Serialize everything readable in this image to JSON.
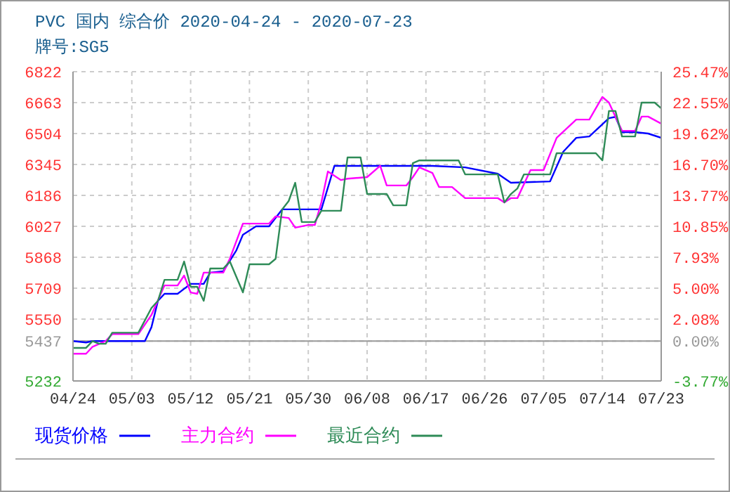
{
  "chart_data": {
    "type": "line",
    "title": "PVC 国内 综合价 2020-04-24 - 2020-07-23",
    "subtitle": "牌号:SG5",
    "xlim": [
      "2020-04-24",
      "2020-07-23"
    ],
    "xticks": [
      {
        "value": "2020-04-24",
        "label": "04/24"
      },
      {
        "value": "2020-05-03",
        "label": "05/03"
      },
      {
        "value": "2020-05-12",
        "label": "05/12"
      },
      {
        "value": "2020-05-21",
        "label": "05/21"
      },
      {
        "value": "2020-05-30",
        "label": "05/30"
      },
      {
        "value": "2020-06-08",
        "label": "06/08"
      },
      {
        "value": "2020-06-17",
        "label": "06/17"
      },
      {
        "value": "2020-06-26",
        "label": "06/26"
      },
      {
        "value": "2020-07-05",
        "label": "07/05"
      },
      {
        "value": "2020-07-14",
        "label": "07/14"
      },
      {
        "value": "2020-07-23",
        "label": "07/23"
      }
    ],
    "ylim": [
      5232,
      6822
    ],
    "yticks": [
      5232,
      5437,
      5550,
      5709,
      5868,
      6027,
      6186,
      6345,
      6504,
      6663,
      6822
    ],
    "y2lim": [
      -3.77,
      25.47
    ],
    "y2ticks": [
      {
        "value": -3.77,
        "label": "-3.77%"
      },
      {
        "value": 0,
        "label": "0.00%"
      },
      {
        "value": 2.08,
        "label": "2.08%"
      },
      {
        "value": 5.0,
        "label": "5.00%"
      },
      {
        "value": 7.93,
        "label": "7.93%"
      },
      {
        "value": 10.85,
        "label": "10.85%"
      },
      {
        "value": 13.77,
        "label": "13.77%"
      },
      {
        "value": 16.7,
        "label": "16.70%"
      },
      {
        "value": 19.62,
        "label": "19.62%"
      },
      {
        "value": 22.55,
        "label": "22.55%"
      },
      {
        "value": 25.47,
        "label": "25.47%"
      }
    ],
    "ref_lines": [
      {
        "axis": "y",
        "value": 5437,
        "label": null,
        "color": "#999999",
        "line_style": "solid"
      }
    ],
    "grid": true,
    "legend": "bottom",
    "marker": "none",
    "line_style": "solid",
    "series": [
      {
        "name": "现货价格",
        "color": "#0000ff",
        "x": [
          "2020-04-24",
          "2020-04-26",
          "2020-04-27",
          "2020-05-05",
          "2020-05-06",
          "2020-05-07",
          "2020-05-08",
          "2020-05-10",
          "2020-05-12",
          "2020-05-14",
          "2020-05-15",
          "2020-05-17",
          "2020-05-19",
          "2020-05-20",
          "2020-05-22",
          "2020-05-24",
          "2020-05-26",
          "2020-06-01",
          "2020-06-03",
          "2020-06-18",
          "2020-06-23",
          "2020-06-28",
          "2020-06-30",
          "2020-07-06",
          "2020-07-08",
          "2020-07-10",
          "2020-07-12",
          "2020-07-15",
          "2020-07-16",
          "2020-07-17",
          "2020-07-19",
          "2020-07-21",
          "2020-07-23"
        ],
        "values": [
          5437,
          5430,
          5437,
          5437,
          5508,
          5644,
          5680,
          5680,
          5731,
          5731,
          5789,
          5796,
          5904,
          5984,
          6027,
          6027,
          6114,
          6114,
          6338,
          6338,
          6330,
          6297,
          6251,
          6258,
          6410,
          6482,
          6489,
          6583,
          6590,
          6511,
          6511,
          6504,
          6482
        ]
      },
      {
        "name": "主力合约",
        "color": "#ff00ff",
        "x": [
          "2020-04-24",
          "2020-04-26",
          "2020-04-27",
          "2020-04-29",
          "2020-04-30",
          "2020-05-04",
          "2020-05-06",
          "2020-05-08",
          "2020-05-10",
          "2020-05-11",
          "2020-05-12",
          "2020-05-13",
          "2020-05-14",
          "2020-05-17",
          "2020-05-18",
          "2020-05-20",
          "2020-05-24",
          "2020-05-25",
          "2020-05-27",
          "2020-05-28",
          "2020-05-30",
          "2020-05-31",
          "2020-06-01",
          "2020-06-02",
          "2020-06-04",
          "2020-06-05",
          "2020-06-08",
          "2020-06-10",
          "2020-06-11",
          "2020-06-14",
          "2020-06-15",
          "2020-06-16",
          "2020-06-18",
          "2020-06-19",
          "2020-06-21",
          "2020-06-23",
          "2020-06-28",
          "2020-06-29",
          "2020-06-30",
          "2020-07-01",
          "2020-07-03",
          "2020-07-05",
          "2020-07-07",
          "2020-07-10",
          "2020-07-12",
          "2020-07-14",
          "2020-07-15",
          "2020-07-17",
          "2020-07-19",
          "2020-07-20",
          "2020-07-21",
          "2020-07-23"
        ],
        "values": [
          5372,
          5372,
          5408,
          5437,
          5473,
          5473,
          5571,
          5723,
          5723,
          5774,
          5687,
          5680,
          5789,
          5789,
          5861,
          6041,
          6041,
          6078,
          6070,
          6020,
          6034,
          6034,
          6150,
          6309,
          6265,
          6272,
          6280,
          6338,
          6237,
          6237,
          6280,
          6330,
          6301,
          6229,
          6229,
          6172,
          6172,
          6150,
          6172,
          6172,
          6316,
          6316,
          6482,
          6576,
          6576,
          6692,
          6663,
          6518,
          6518,
          6591,
          6591,
          6555
        ]
      },
      {
        "name": "最近合约",
        "color": "#2e8b57",
        "x": [
          "2020-04-24",
          "2020-04-26",
          "2020-04-27",
          "2020-04-28",
          "2020-04-29",
          "2020-04-30",
          "2020-05-04",
          "2020-05-06",
          "2020-05-07",
          "2020-05-08",
          "2020-05-10",
          "2020-05-11",
          "2020-05-12",
          "2020-05-13",
          "2020-05-14",
          "2020-05-15",
          "2020-05-17",
          "2020-05-18",
          "2020-05-20",
          "2020-05-21",
          "2020-05-24",
          "2020-05-25",
          "2020-05-26",
          "2020-05-27",
          "2020-05-28",
          "2020-05-29",
          "2020-05-31",
          "2020-06-01",
          "2020-06-04",
          "2020-06-05",
          "2020-06-07",
          "2020-06-08",
          "2020-06-11",
          "2020-06-12",
          "2020-06-14",
          "2020-06-15",
          "2020-06-16",
          "2020-06-22",
          "2020-06-23",
          "2020-06-28",
          "2020-06-29",
          "2020-06-30",
          "2020-07-01",
          "2020-07-02",
          "2020-07-06",
          "2020-07-07",
          "2020-07-13",
          "2020-07-14",
          "2020-07-15",
          "2020-07-16",
          "2020-07-17",
          "2020-07-19",
          "2020-07-20",
          "2020-07-22",
          "2020-07-23"
        ],
        "values": [
          5402,
          5402,
          5437,
          5423,
          5423,
          5480,
          5480,
          5607,
          5644,
          5752,
          5752,
          5846,
          5716,
          5716,
          5644,
          5810,
          5810,
          5846,
          5687,
          5832,
          5832,
          5860,
          6114,
          6157,
          6251,
          6049,
          6049,
          6107,
          6107,
          6381,
          6381,
          6193,
          6193,
          6135,
          6135,
          6352,
          6366,
          6366,
          6294,
          6294,
          6150,
          6193,
          6222,
          6294,
          6294,
          6403,
          6403,
          6366,
          6620,
          6620,
          6489,
          6489,
          6663,
          6663,
          6634
        ]
      }
    ]
  }
}
